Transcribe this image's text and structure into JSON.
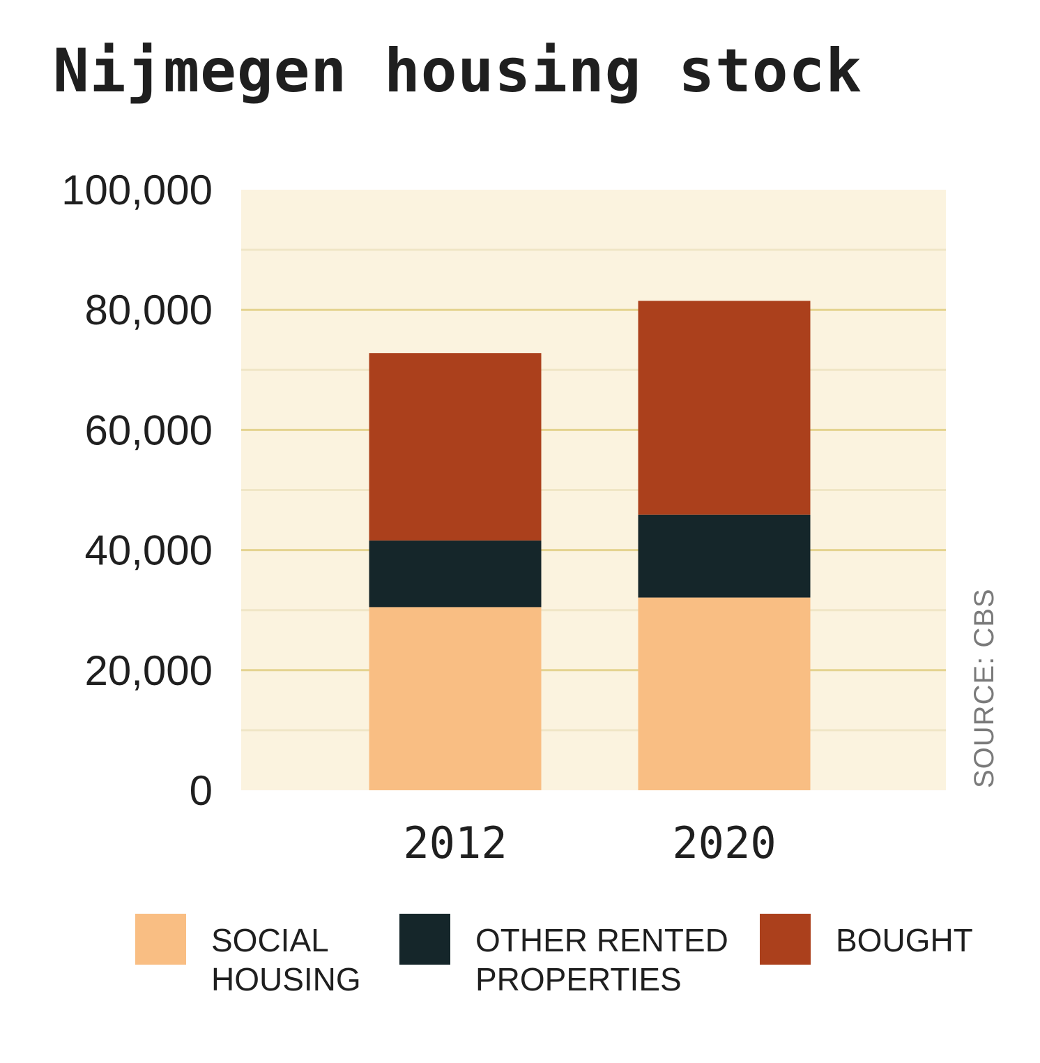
{
  "title": "Nijmegen housing stock",
  "source": "SOURCE: CBS",
  "colors": {
    "plot_bg": "#fbf3df",
    "major_grid": "#e4d38f",
    "minor_grid": "#f0e6c6",
    "social": "#f9be83",
    "other_rented": "#15262a",
    "bought": "#ab401c"
  },
  "chart_data": {
    "type": "bar",
    "stacked": true,
    "categories": [
      "2012",
      "2020"
    ],
    "series": [
      {
        "name": "SOCIAL HOUSING",
        "values": [
          30500,
          32100
        ]
      },
      {
        "name": "OTHER RENTED PROPERTIES",
        "values": [
          11100,
          13800
        ]
      },
      {
        "name": "BOUGHT",
        "values": [
          31200,
          35600
        ]
      }
    ],
    "ylim": [
      0,
      100000
    ],
    "yticks": [
      0,
      20000,
      40000,
      60000,
      80000,
      100000
    ],
    "ytick_labels": [
      "0",
      "20,000",
      "40,000",
      "60,000",
      "80,000",
      "100,000"
    ],
    "grid": true,
    "legend_position": "bottom"
  },
  "legend": [
    {
      "label": "SOCIAL\nHOUSING"
    },
    {
      "label": "OTHER RENTED\nPROPERTIES"
    },
    {
      "label": "BOUGHT"
    }
  ]
}
